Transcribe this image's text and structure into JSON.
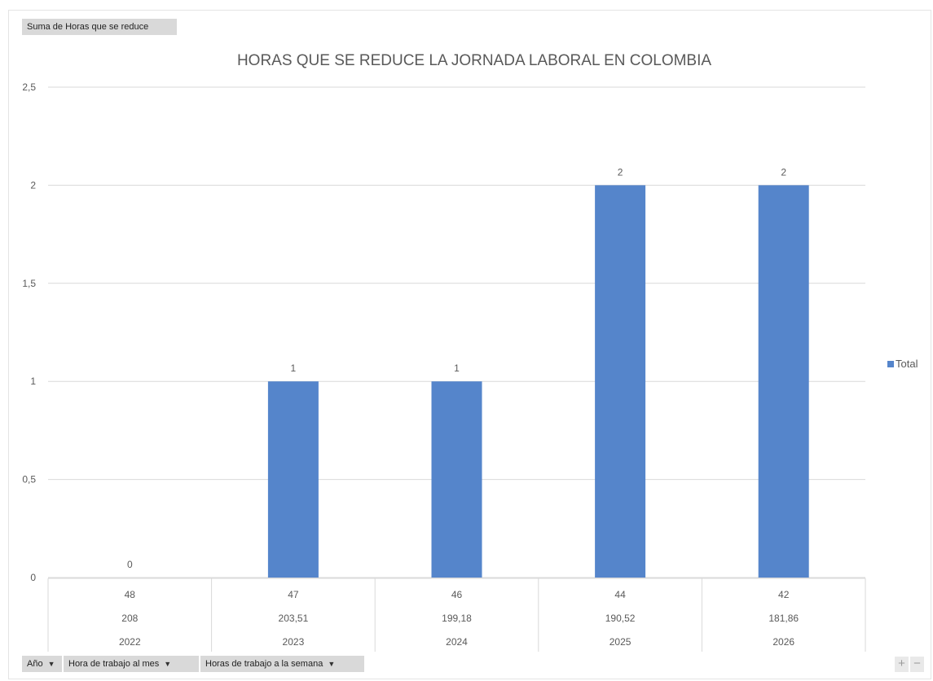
{
  "field_buttons": {
    "value_field": "Suma de Horas que se reduce",
    "row_fields": [
      "Año",
      "Hora de trabajo  al mes",
      "Horas de trabajo a la semana"
    ]
  },
  "zoom": {
    "plus": "+",
    "minus": "−"
  },
  "legend": {
    "label": "Total"
  },
  "colors": {
    "bar": "#5585cb",
    "grid": "#d9d9d9",
    "text": "#595959"
  },
  "chart_data": {
    "type": "bar",
    "title": "HORAS QUE SE REDUCE LA JORNADA LABORAL EN COLOMBIA",
    "series": [
      {
        "name": "Total",
        "values": [
          0,
          1,
          1,
          2,
          2
        ]
      }
    ],
    "data_labels": [
      "0",
      "1",
      "1",
      "2",
      "2"
    ],
    "category_levels": [
      [
        "48",
        "47",
        "46",
        "44",
        "42"
      ],
      [
        "208",
        "203,51",
        "199,18",
        "190,52",
        "181,86"
      ],
      [
        "2022",
        "2023",
        "2024",
        "2025",
        "2026"
      ]
    ],
    "y_ticks": [
      "0",
      "0,5",
      "1",
      "1,5",
      "2",
      "2,5"
    ],
    "ylim": [
      0,
      2.5
    ],
    "grid": true,
    "legend_position": "right"
  }
}
